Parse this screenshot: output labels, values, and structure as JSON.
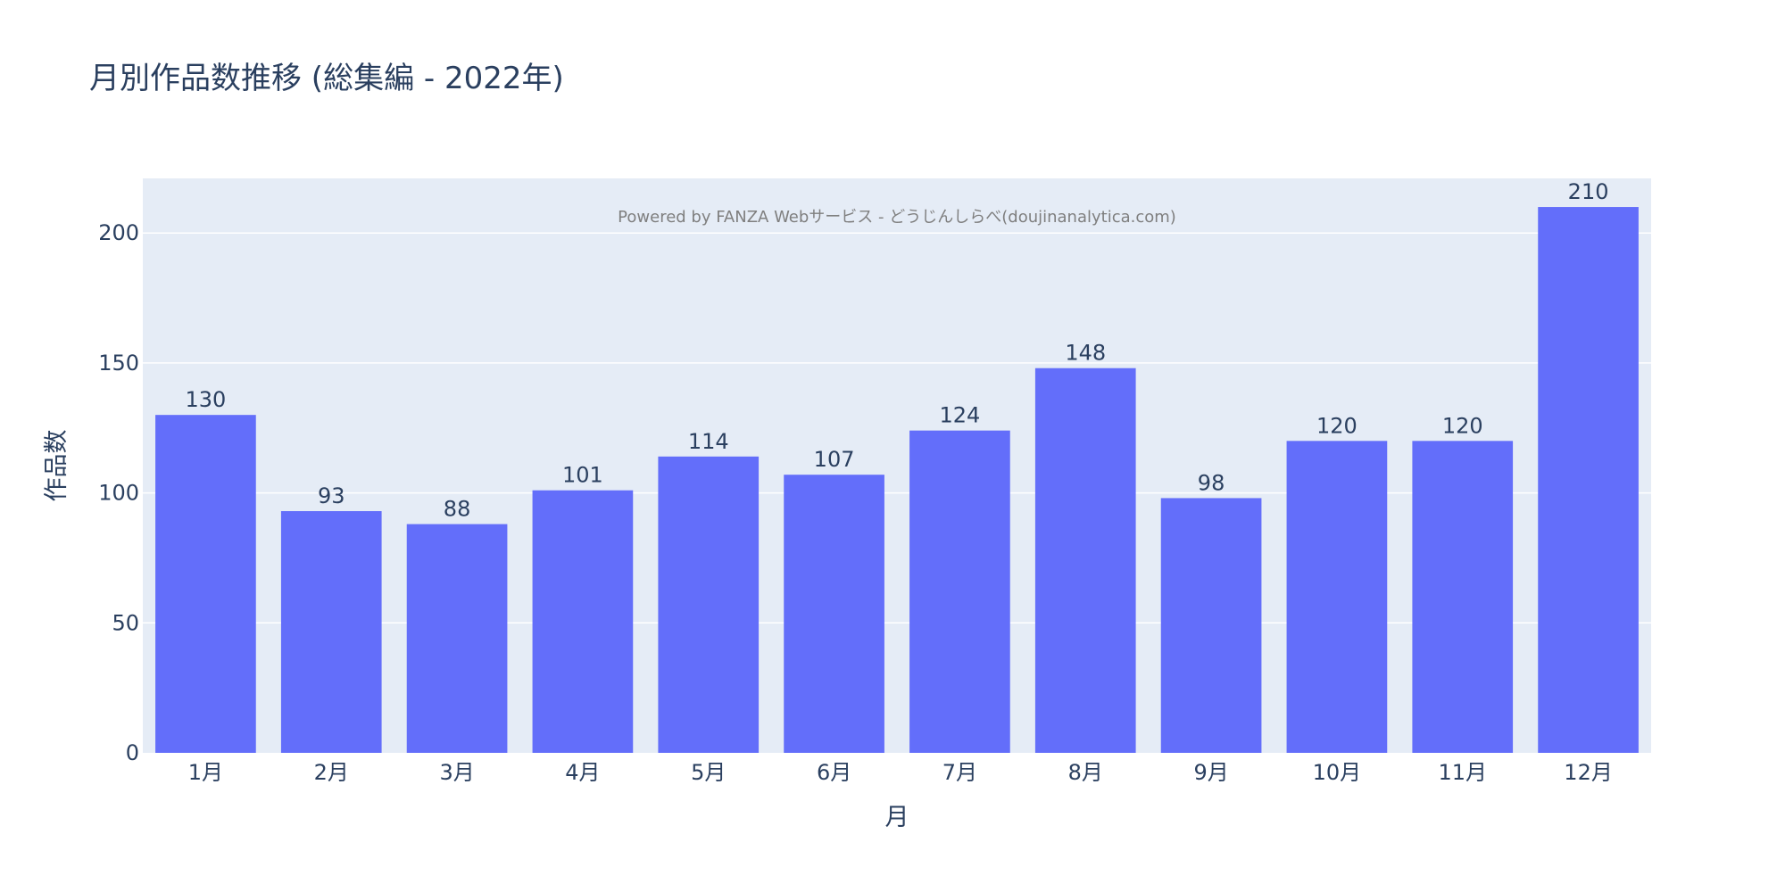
{
  "chart_data": {
    "type": "bar",
    "title": "月別作品数推移 (総集編 - 2022年)",
    "xlabel": "月",
    "ylabel": "作品数",
    "categories": [
      "1月",
      "2月",
      "3月",
      "4月",
      "5月",
      "6月",
      "7月",
      "8月",
      "9月",
      "10月",
      "11月",
      "12月"
    ],
    "values": [
      130,
      93,
      88,
      101,
      114,
      107,
      124,
      148,
      98,
      120,
      120,
      210
    ],
    "ylim": [
      0,
      221
    ],
    "yticks": [
      0,
      50,
      100,
      150,
      200
    ],
    "annotation": "Powered by FANZA Webサービス - どうじんしらべ(doujinanalytica.com)",
    "grid": true,
    "legend": false,
    "colors": {
      "bar": "#636efa",
      "plot_bg": "#e5ecf6",
      "text": "#2a3f5f",
      "annotation": "#7f7f7f"
    }
  }
}
